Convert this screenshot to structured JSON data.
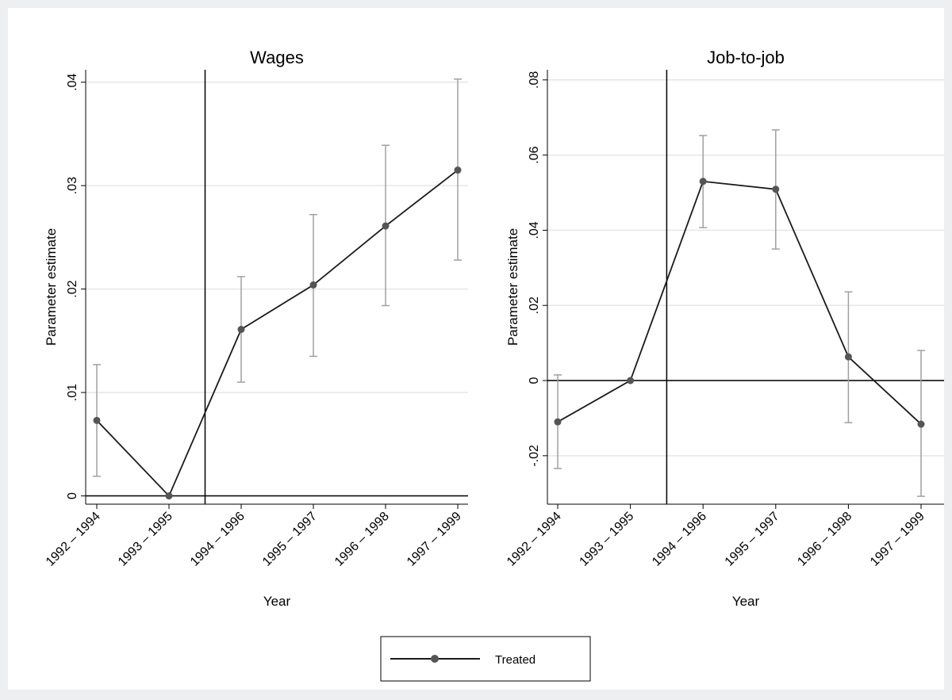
{
  "chart_data": [
    {
      "type": "line",
      "title": "Wages",
      "x_label": "Year",
      "y_label": "Parameter estimate",
      "categories": [
        "1992 – 1994",
        "1993 – 1995",
        "1994 – 1996",
        "1995 – 1997",
        "1996 – 1998",
        "1997 – 1999"
      ],
      "series": [
        {
          "name": "Treated",
          "color": "#1a1a1a",
          "marker_color": "#555555",
          "values": [
            0.0073,
            0,
            0.0161,
            0.0204,
            0.0261,
            0.0315
          ],
          "ci_low": [
            0.0019,
            null,
            0.011,
            0.0135,
            0.0184,
            0.0228
          ],
          "ci_high": [
            0.0127,
            null,
            0.0212,
            0.0272,
            0.0339,
            0.0403
          ],
          "ci_color": "#a0a0a0"
        }
      ],
      "ylim": [
        -0.0008,
        0.0412
      ],
      "yticks": [
        0,
        {
          "value": 0.01,
          "label": ".01"
        },
        {
          "value": 0.02,
          "label": ".02"
        },
        {
          "value": 0.03,
          "label": ".03"
        },
        {
          "value": 0.04,
          "label": ".04"
        }
      ],
      "grid": true,
      "yline": 0,
      "xline": 1.5
    },
    {
      "type": "line",
      "title": "Job-to-job",
      "x_label": "Year",
      "y_label": "Parameter estimate",
      "categories": [
        "1992 – 1994",
        "1993 – 1995",
        "1994 – 1996",
        "1995 – 1997",
        "1996 – 1998",
        "1997 – 1999"
      ],
      "series": [
        {
          "color": "#1a1a1a",
          "marker_color": "#555555",
          "values": [
            -0.011,
            0,
            0.053,
            0.0509,
            0.0063,
            -0.0116
          ],
          "ci_low": [
            -0.0234,
            null,
            0.0407,
            0.035,
            -0.0112,
            -0.0308
          ],
          "ci_high": [
            0.0015,
            null,
            0.0652,
            0.0667,
            0.0236,
            0.008
          ],
          "ci_color": "#a0a0a0"
        }
      ],
      "ylim": [
        -0.0329,
        0.0827
      ],
      "yticks": [
        {
          "value": -0.02,
          "label": "-.02"
        },
        0,
        {
          "value": 0.02,
          "label": ".02"
        },
        {
          "value": 0.04,
          "label": ".04"
        },
        {
          "value": 0.06,
          "label": ".06"
        },
        {
          "value": 0.08,
          "label": ".08"
        }
      ],
      "grid": true,
      "yline": 0,
      "xline": 1.5
    }
  ]
}
